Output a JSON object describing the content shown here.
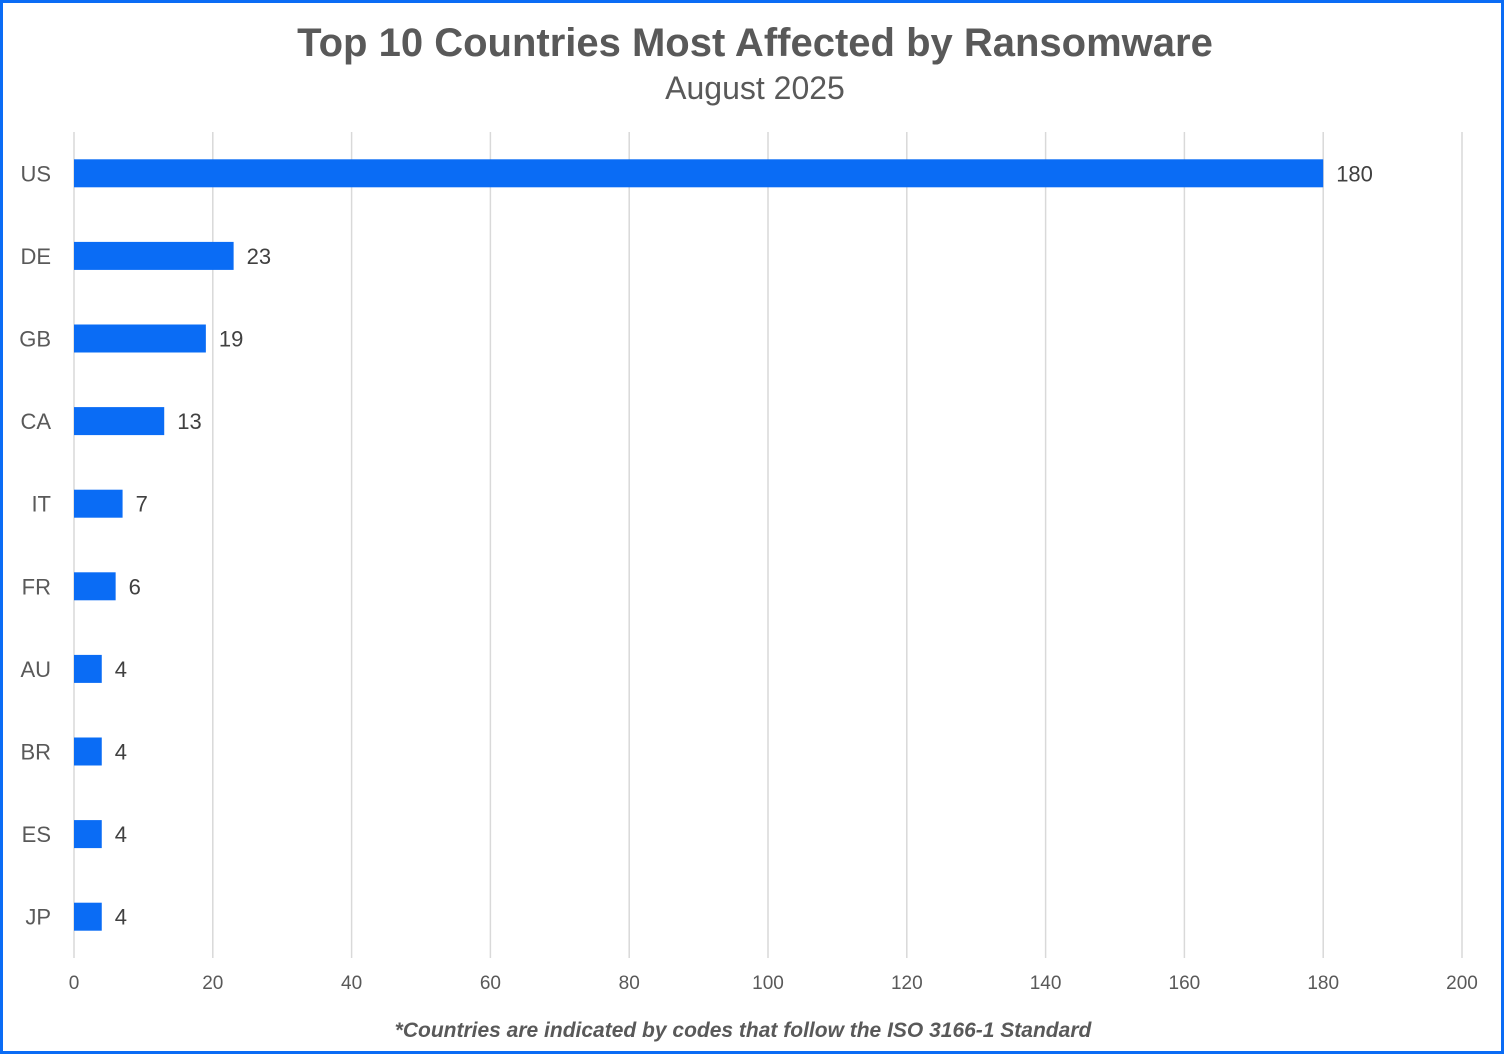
{
  "title": "Top 10 Countries Most Affected by Ransomware",
  "subtitle": "August 2025",
  "footnote": "*Countries are indicated by codes that follow the ISO 3166-1 Standard",
  "colors": {
    "bar": "#0a6cf5",
    "border": "#0a6cf5",
    "grid": "#d9d9d9",
    "text": "#595959"
  },
  "chart_data": {
    "type": "bar",
    "orientation": "horizontal",
    "title": "Top 10 Countries Most Affected by Ransomware",
    "subtitle": "August 2025",
    "categories": [
      "US",
      "DE",
      "GB",
      "CA",
      "IT",
      "FR",
      "AU",
      "BR",
      "ES",
      "JP"
    ],
    "values": [
      180,
      23,
      19,
      13,
      7,
      6,
      4,
      4,
      4,
      4
    ],
    "xlim": [
      0,
      200
    ],
    "xticks": [
      0,
      20,
      40,
      60,
      80,
      100,
      120,
      140,
      160,
      180,
      200
    ],
    "grid": true,
    "data_labels": true,
    "legend": "none"
  }
}
